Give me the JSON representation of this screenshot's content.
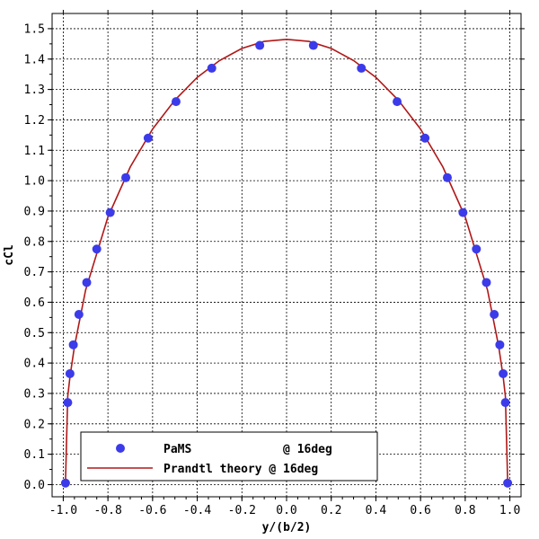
{
  "chart_data": {
    "type": "scatter",
    "title": "",
    "xlabel": "y/(b/2)",
    "ylabel": "cCl",
    "xlim": [
      -1.05,
      1.05
    ],
    "ylim": [
      -0.04,
      1.55
    ],
    "xticks": [
      -1.0,
      -0.8,
      -0.6,
      -0.4,
      -0.2,
      0.0,
      0.2,
      0.4,
      0.6,
      0.8,
      1.0
    ],
    "xtick_labels": [
      "-1.0",
      "-0.8",
      "-0.6",
      "-0.4",
      "-0.2",
      "0.0",
      "0.2",
      "0.4",
      "0.6",
      "0.8",
      "1.0"
    ],
    "yticks": [
      0.0,
      0.1,
      0.2,
      0.3,
      0.4,
      0.5,
      0.6,
      0.7,
      0.8,
      0.9,
      1.0,
      1.1,
      1.2,
      1.3,
      1.4,
      1.5
    ],
    "ytick_labels": [
      "0.0",
      "0.1",
      "0.2",
      "0.3",
      "0.4",
      "0.5",
      "0.6",
      "0.7",
      "0.8",
      "0.9",
      "1.0",
      "1.1",
      "1.2",
      "1.3",
      "1.4",
      "1.5"
    ],
    "grid": true,
    "legend_position": "bottom-center",
    "series": [
      {
        "name": "PaMS             @ 16deg",
        "kind": "scatter",
        "color": "#3b3bea",
        "x": [
          -0.99,
          -0.98,
          -0.97,
          -0.955,
          -0.93,
          -0.895,
          -0.85,
          -0.79,
          -0.72,
          -0.62,
          -0.495,
          -0.335,
          -0.12,
          0.12,
          0.335,
          0.495,
          0.62,
          0.72,
          0.79,
          0.85,
          0.895,
          0.93,
          0.955,
          0.97,
          0.98,
          0.99
        ],
        "y": [
          0.005,
          0.27,
          0.365,
          0.46,
          0.56,
          0.665,
          0.775,
          0.895,
          1.01,
          1.14,
          1.26,
          1.37,
          1.445,
          1.445,
          1.37,
          1.26,
          1.14,
          1.01,
          0.895,
          0.775,
          0.665,
          0.56,
          0.46,
          0.365,
          0.27,
          0.005
        ]
      },
      {
        "name": "Prandtl theory @ 16deg",
        "kind": "line",
        "color": "#b01818",
        "x": [
          -0.99,
          -0.98,
          -0.97,
          -0.95,
          -0.9,
          -0.8,
          -0.7,
          -0.6,
          -0.5,
          -0.4,
          -0.3,
          -0.2,
          -0.1,
          0.0,
          0.1,
          0.2,
          0.3,
          0.4,
          0.5,
          0.6,
          0.7,
          0.8,
          0.9,
          0.95,
          0.97,
          0.98,
          0.99
        ],
        "y": [
          0.01,
          0.29,
          0.355,
          0.455,
          0.64,
          0.88,
          1.045,
          1.17,
          1.265,
          1.34,
          1.395,
          1.435,
          1.458,
          1.465,
          1.458,
          1.435,
          1.395,
          1.34,
          1.265,
          1.17,
          1.045,
          0.88,
          0.64,
          0.455,
          0.355,
          0.29,
          0.01
        ]
      }
    ]
  }
}
